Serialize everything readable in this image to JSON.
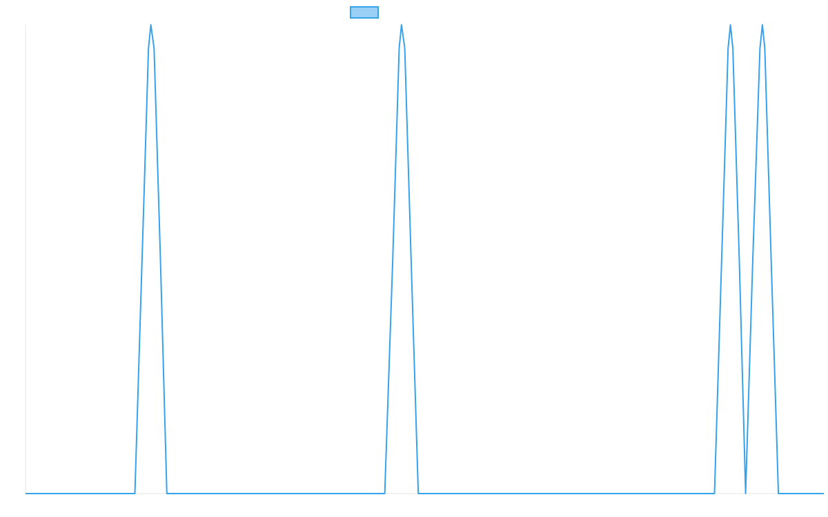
{
  "chart_data": {
    "type": "line",
    "title": "",
    "xlabel": "",
    "ylabel": "",
    "xlim": [
      0,
      100
    ],
    "ylim": [
      0,
      1
    ],
    "grid": false,
    "legend": {
      "position": "top-center",
      "entries": [
        {
          "label": ""
        }
      ]
    },
    "series": [
      {
        "x": [
          0,
          13.7,
          14.6,
          15.4,
          15.7,
          16.1,
          16.9,
          17.7,
          30.0,
          45.0,
          46.0,
          46.8,
          47.1,
          47.5,
          48.3,
          49.2,
          60.0,
          86.3,
          87.2,
          88.0,
          88.3,
          88.6,
          89.4,
          90.2,
          91.1,
          92.0,
          92.3,
          92.6,
          93.4,
          94.3,
          100
        ],
        "y": [
          0,
          0,
          0.5,
          0.95,
          1.0,
          0.95,
          0.5,
          0,
          0,
          0,
          0.5,
          0.95,
          1.0,
          0.95,
          0.5,
          0,
          0,
          0,
          0.5,
          0.95,
          1.0,
          0.95,
          0.5,
          0,
          0.5,
          0.95,
          1.0,
          0.95,
          0.5,
          0,
          0
        ]
      }
    ],
    "colors": {
      "line": "#36a2eb",
      "legend_fill": "#9ad0f5",
      "legend_stroke": "#36a2eb",
      "axis": "#e5e5e5"
    }
  }
}
